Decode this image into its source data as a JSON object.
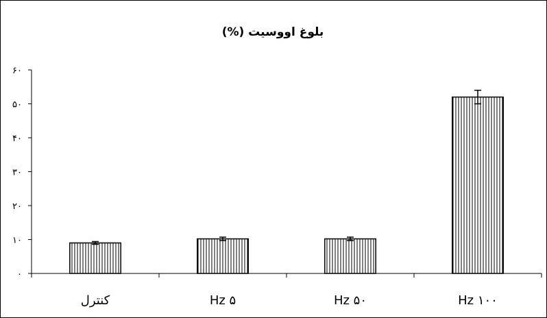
{
  "chart_data": {
    "type": "bar",
    "title": "بلوغ اووسیت (%)",
    "xlabel": "",
    "ylabel": "",
    "categories": [
      "کنترل",
      "Hz ۵",
      "Hz ۵۰",
      "Hz ۱۰۰"
    ],
    "values": [
      9,
      10.2,
      10.2,
      52
    ],
    "errors": [
      0.4,
      0.5,
      0.5,
      2
    ],
    "ylim": [
      0,
      60
    ],
    "yticks": [
      0,
      10,
      20,
      30,
      40,
      50,
      60
    ],
    "ytick_labels": [
      "۰",
      "۱۰",
      "۲۰",
      "۳۰",
      "۴۰",
      "۵۰",
      "۶۰"
    ],
    "grid": false,
    "legend": "none",
    "bar_fill": "vertical-hatch",
    "colors": {
      "bar_stroke": "#000000",
      "hatch": "#000000",
      "background": "#ffffff"
    }
  }
}
